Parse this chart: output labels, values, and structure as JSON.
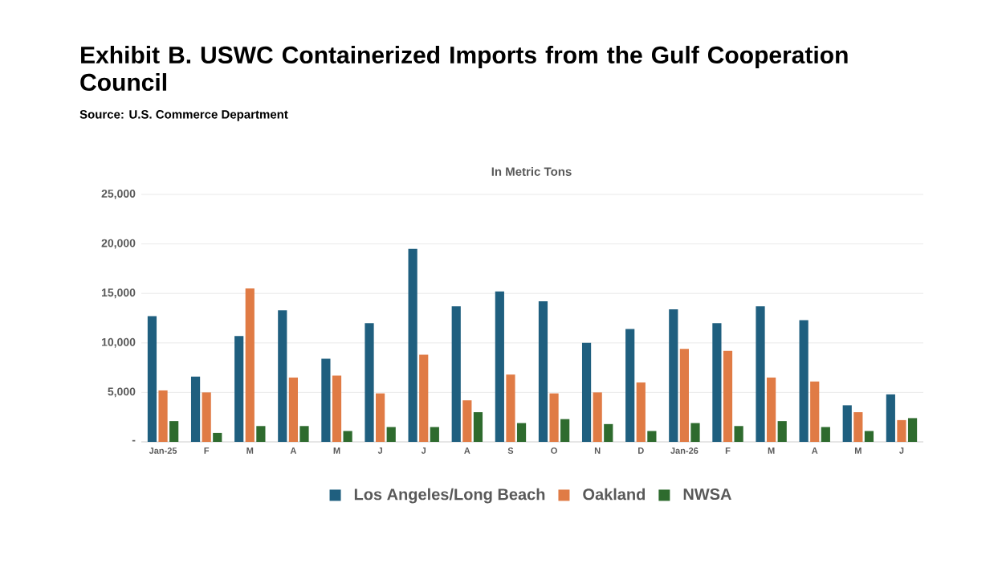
{
  "chart_data": {
    "type": "bar",
    "title": "Exhibit B. USWC Containerized Imports from the Gulf Cooperation Council",
    "subtitle": "Source: U.S. Commerce Department",
    "ylabel": "In Metric Tons",
    "categories": [
      "Jan-25",
      "F",
      "M",
      "A",
      "M",
      "J",
      "J",
      "A",
      "S",
      "O",
      "N",
      "D",
      "Jan-26",
      "F",
      "M",
      "A",
      "M",
      "J"
    ],
    "series": [
      {
        "name": "Los Angeles/Long Beach",
        "color": "#1f5f7f",
        "values": [
          12700,
          6600,
          10700,
          13300,
          8400,
          12000,
          19500,
          13700,
          15200,
          14200,
          10000,
          11400,
          13400,
          12000,
          13700,
          12300,
          3700,
          4800
        ]
      },
      {
        "name": "Oakland",
        "color": "#e07b45",
        "values": [
          5200,
          5000,
          15500,
          6500,
          6700,
          4900,
          8800,
          4200,
          6800,
          4900,
          5000,
          6000,
          9400,
          9200,
          6500,
          6100,
          3000,
          2200
        ]
      },
      {
        "name": "NWSA",
        "color": "#2e6b2e",
        "values": [
          2100,
          900,
          1600,
          1600,
          1100,
          1500,
          1500,
          3000,
          1900,
          2300,
          1800,
          1100,
          1900,
          1600,
          2100,
          1500,
          1100,
          2400
        ]
      }
    ],
    "ylim": [
      0,
      25000
    ],
    "yticks": [
      {
        "value": 0,
        "label": "-"
      },
      {
        "value": 5000,
        "label": "5,000"
      },
      {
        "value": 10000,
        "label": "10,000"
      },
      {
        "value": 15000,
        "label": "15,000"
      },
      {
        "value": 20000,
        "label": "20,000"
      },
      {
        "value": 25000,
        "label": "25,000"
      }
    ],
    "grid": "y",
    "legend": "bottom"
  }
}
